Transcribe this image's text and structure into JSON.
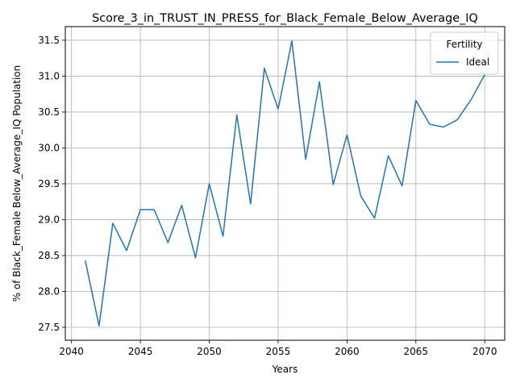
{
  "chart_data": {
    "type": "line",
    "title": "Score_3_in_TRUST_IN_PRESS_for_Black_Female_Below_Average_IQ",
    "xlabel": "Years",
    "ylabel": "% of Black_Female Below_Average_IQ Population",
    "xlim": [
      2039.55,
      2071.45
    ],
    "ylim": [
      27.32,
      31.69
    ],
    "xticks": [
      2040,
      2045,
      2050,
      2055,
      2060,
      2065,
      2070
    ],
    "yticks": [
      27.5,
      28.0,
      28.5,
      29.0,
      29.5,
      30.0,
      30.5,
      31.0,
      31.5
    ],
    "yticklabels": [
      "27.5",
      "28.0",
      "28.5",
      "29.0",
      "29.5",
      "30.0",
      "30.5",
      "31.0",
      "31.5"
    ],
    "grid": true,
    "legend": {
      "title": "Fertility",
      "position": "top-right"
    },
    "series": [
      {
        "name": "Ideal",
        "color": "#1f77b4",
        "x": [
          2041,
          2042,
          2043,
          2044,
          2045,
          2046,
          2047,
          2048,
          2049,
          2050,
          2051,
          2052,
          2053,
          2054,
          2055,
          2056,
          2057,
          2058,
          2059,
          2060,
          2061,
          2062,
          2063,
          2064,
          2065,
          2066,
          2067,
          2068,
          2069,
          2070
        ],
        "y": [
          28.43,
          27.52,
          28.95,
          28.57,
          29.14,
          29.14,
          28.68,
          29.2,
          28.47,
          29.5,
          28.77,
          30.46,
          29.22,
          31.11,
          30.54,
          31.49,
          29.84,
          30.92,
          29.49,
          30.18,
          29.33,
          29.02,
          29.89,
          29.47,
          30.66,
          30.33,
          30.29,
          30.39,
          30.67,
          31.02
        ]
      }
    ]
  }
}
